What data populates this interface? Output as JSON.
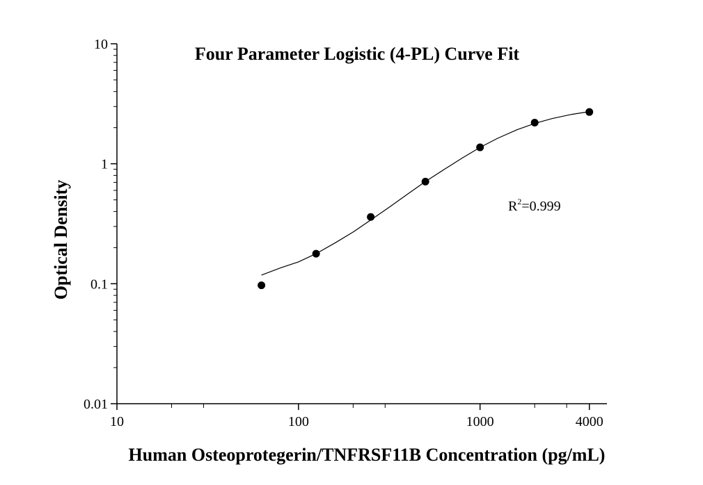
{
  "chart_data": {
    "type": "scatter",
    "title": "Four Parameter Logistic (4-PL) Curve Fit",
    "xlabel": "Human Osteoprotegerin/TNFRSF11B Concentration (pg/mL)",
    "ylabel": "Optical Density",
    "x_scale": "log",
    "y_scale": "log",
    "xlim": [
      10,
      5000
    ],
    "ylim": [
      0.01,
      10
    ],
    "x_ticks": [
      {
        "value": 10,
        "label": "10"
      },
      {
        "value": 100,
        "label": "100"
      },
      {
        "value": 1000,
        "label": "1000"
      },
      {
        "value": 4000,
        "label": "4000"
      }
    ],
    "x_minor_ticks": [
      20,
      30,
      200,
      300,
      2000,
      3000
    ],
    "y_ticks": [
      {
        "value": 0.01,
        "label": "0.01"
      },
      {
        "value": 0.1,
        "label": "0.1"
      },
      {
        "value": 1,
        "label": "1"
      },
      {
        "value": 10,
        "label": "10"
      }
    ],
    "grid": false,
    "series": [
      {
        "type": "scatter",
        "x": [
          62.5,
          125,
          250,
          500,
          1000,
          2000,
          4000
        ],
        "y": [
          0.097,
          0.178,
          0.36,
          0.71,
          1.37,
          2.2,
          2.7
        ]
      },
      {
        "type": "line",
        "x": [
          62.5,
          80,
          100,
          125,
          160,
          200,
          250,
          320,
          400,
          500,
          630,
          800,
          1000,
          1250,
          1600,
          2000,
          2500,
          3200,
          4000
        ],
        "y": [
          0.118,
          0.136,
          0.152,
          0.178,
          0.22,
          0.27,
          0.34,
          0.44,
          0.56,
          0.71,
          0.89,
          1.12,
          1.37,
          1.63,
          1.92,
          2.17,
          2.38,
          2.58,
          2.72
        ]
      }
    ],
    "annotations": [
      {
        "base": "R",
        "superscript": "2",
        "text": "=0.999"
      }
    ],
    "colors": {
      "marker": "#000000",
      "line": "#000000",
      "axis": "#000000"
    }
  }
}
